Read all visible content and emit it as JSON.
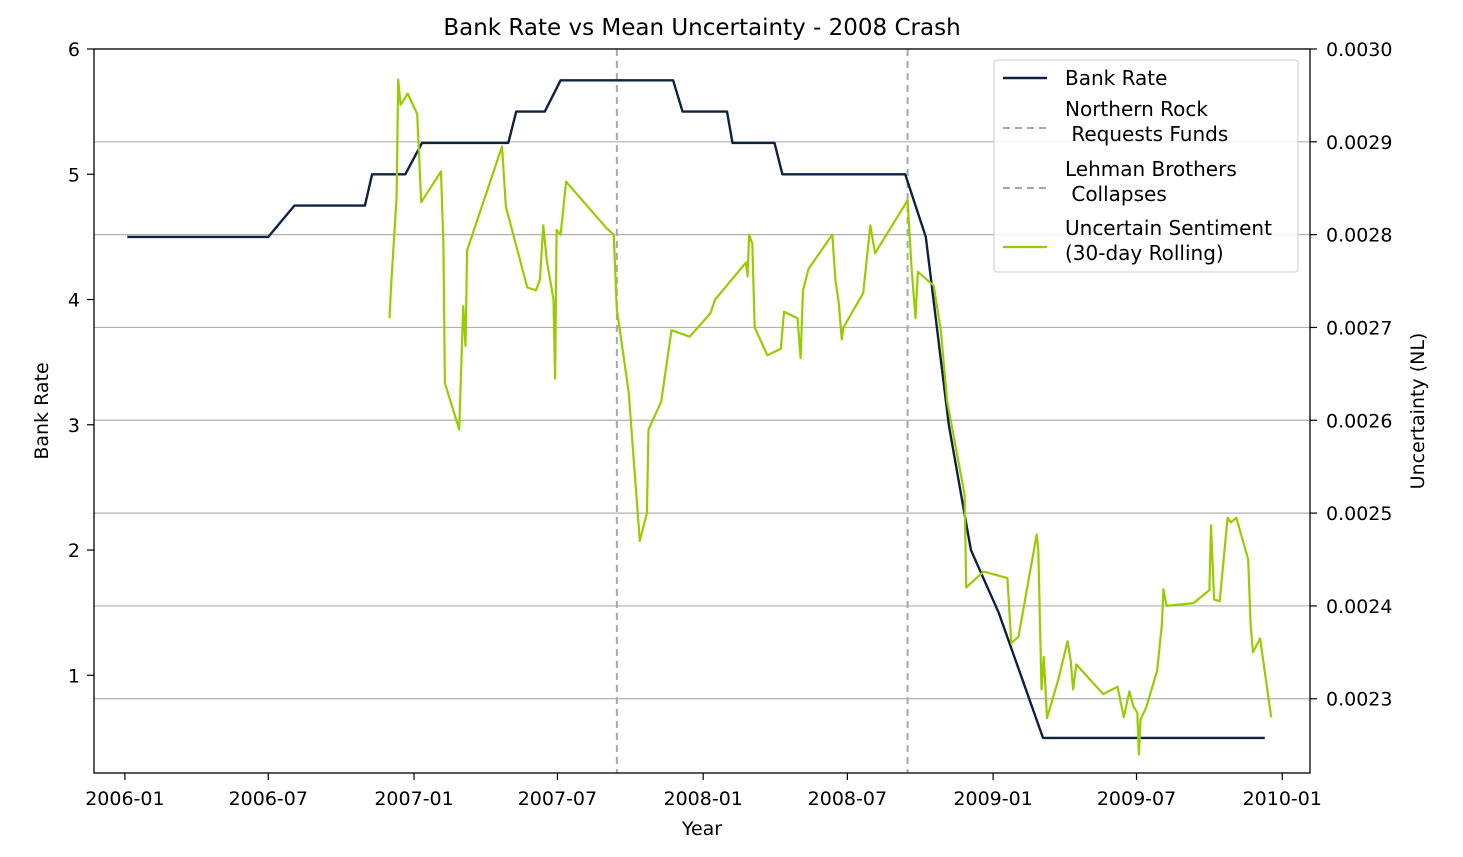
{
  "chart_data": {
    "type": "line",
    "title": "Bank Rate vs Mean Uncertainty - 2008 Crash",
    "xlabel": "Year",
    "ylabel_left": "Bank Rate",
    "ylabel_right": "Uncertainty (NL)",
    "x_ticks": [
      "2006-01",
      "2006-07",
      "2007-01",
      "2007-07",
      "2008-01",
      "2008-07",
      "2009-01",
      "2009-07",
      "2010-01"
    ],
    "y_left_ticks": [
      "1",
      "2",
      "3",
      "4",
      "5",
      "6"
    ],
    "y_right_ticks": [
      "0.0023",
      "0.0024",
      "0.0025",
      "0.0026",
      "0.0027",
      "0.0028",
      "0.0029",
      "0.0030"
    ],
    "xlim": [
      "2005-11-23",
      "2010-02-05"
    ],
    "ylim_left": [
      0.22,
      6.0
    ],
    "ylim_right": [
      0.00222,
      0.003
    ],
    "grid": "right-axis horizontal",
    "legend_position": "top-right",
    "events": [
      {
        "date": "2007-09-14",
        "label": "Northern Rock\n Requests Funds"
      },
      {
        "date": "2008-09-15",
        "label": "Lehman Brothers\n Collapses"
      }
    ],
    "colors": {
      "bank_rate": "#0e2240",
      "uncertainty": "#99cc00",
      "events": "#a8a8a8",
      "grid": "#b0b0b0"
    },
    "series": [
      {
        "name": "Bank Rate",
        "axis": "left",
        "points": [
          [
            "2006-01-04",
            4.5
          ],
          [
            "2006-07-01",
            4.5
          ],
          [
            "2006-08-03",
            4.75
          ],
          [
            "2006-10-31",
            4.75
          ],
          [
            "2006-11-09",
            5.0
          ],
          [
            "2006-12-21",
            5.0
          ],
          [
            "2007-01-11",
            5.25
          ],
          [
            "2007-04-30",
            5.25
          ],
          [
            "2007-05-10",
            5.5
          ],
          [
            "2007-06-15",
            5.5
          ],
          [
            "2007-07-05",
            5.75
          ],
          [
            "2007-11-24",
            5.75
          ],
          [
            "2007-12-06",
            5.5
          ],
          [
            "2008-01-31",
            5.5
          ],
          [
            "2008-02-07",
            5.25
          ],
          [
            "2008-03-31",
            5.25
          ],
          [
            "2008-04-10",
            5.0
          ],
          [
            "2008-09-12",
            5.0
          ],
          [
            "2008-10-08",
            4.5
          ],
          [
            "2008-11-06",
            3.0
          ],
          [
            "2008-12-04",
            2.0
          ],
          [
            "2009-01-08",
            1.5
          ],
          [
            "2009-02-05",
            1.0
          ],
          [
            "2009-03-05",
            0.5
          ],
          [
            "2009-12-10",
            0.5
          ]
        ]
      },
      {
        "name": "Uncertain Sentiment\n(30-day Rolling)",
        "axis": "right",
        "points": [
          [
            "2006-12-01",
            0.00271
          ],
          [
            "2006-12-03",
            0.002745
          ],
          [
            "2006-12-10",
            0.00284
          ],
          [
            "2006-12-12",
            0.002967
          ],
          [
            "2006-12-15",
            0.00294
          ],
          [
            "2006-12-24",
            0.002952
          ],
          [
            "2007-01-05",
            0.00293
          ],
          [
            "2007-01-10",
            0.002835
          ],
          [
            "2007-02-04",
            0.002868
          ],
          [
            "2007-02-07",
            0.00279
          ],
          [
            "2007-02-09",
            0.00264
          ],
          [
            "2007-02-27",
            0.00259
          ],
          [
            "2007-03-04",
            0.002723
          ],
          [
            "2007-03-07",
            0.00268
          ],
          [
            "2007-03-09",
            0.002783
          ],
          [
            "2007-04-22",
            0.002895
          ],
          [
            "2007-04-27",
            0.00283
          ],
          [
            "2007-05-24",
            0.002743
          ],
          [
            "2007-06-04",
            0.00274
          ],
          [
            "2007-06-09",
            0.002752
          ],
          [
            "2007-06-13",
            0.00281
          ],
          [
            "2007-06-18",
            0.00277
          ],
          [
            "2007-06-26",
            0.00273
          ],
          [
            "2007-06-28",
            0.002645
          ],
          [
            "2007-06-30",
            0.002805
          ],
          [
            "2007-07-05",
            0.0028
          ],
          [
            "2007-07-12",
            0.002857
          ],
          [
            "2007-09-01",
            0.002807
          ],
          [
            "2007-09-10",
            0.0028
          ],
          [
            "2007-09-14",
            0.00272
          ],
          [
            "2007-09-29",
            0.00263
          ],
          [
            "2007-10-13",
            0.00247
          ],
          [
            "2007-10-22",
            0.0025
          ],
          [
            "2007-10-24",
            0.00259
          ],
          [
            "2007-11-09",
            0.00262
          ],
          [
            "2007-11-22",
            0.002697
          ],
          [
            "2007-12-15",
            0.00269
          ],
          [
            "2008-01-10",
            0.002715
          ],
          [
            "2008-01-16",
            0.00273
          ],
          [
            "2008-02-24",
            0.00277
          ],
          [
            "2008-02-26",
            0.002755
          ],
          [
            "2008-02-28",
            0.0028
          ],
          [
            "2008-03-03",
            0.00279
          ],
          [
            "2008-03-06",
            0.0027
          ],
          [
            "2008-03-22",
            0.00267
          ],
          [
            "2008-04-08",
            0.002677
          ],
          [
            "2008-04-12",
            0.002717
          ],
          [
            "2008-04-29",
            0.00271
          ],
          [
            "2008-05-03",
            0.002667
          ],
          [
            "2008-05-06",
            0.00274
          ],
          [
            "2008-05-13",
            0.002763
          ],
          [
            "2008-06-12",
            0.0028
          ],
          [
            "2008-06-16",
            0.00275
          ],
          [
            "2008-06-20",
            0.002727
          ],
          [
            "2008-06-24",
            0.002687
          ],
          [
            "2008-06-26",
            0.0027
          ],
          [
            "2008-07-21",
            0.002737
          ],
          [
            "2008-07-30",
            0.00281
          ],
          [
            "2008-08-05",
            0.00278
          ],
          [
            "2008-09-15",
            0.002837
          ],
          [
            "2008-09-20",
            0.002765
          ],
          [
            "2008-09-25",
            0.00271
          ],
          [
            "2008-09-28",
            0.00276
          ],
          [
            "2008-10-18",
            0.002745
          ],
          [
            "2008-10-27",
            0.002697
          ],
          [
            "2008-11-04",
            0.00262
          ],
          [
            "2008-11-26",
            0.00252
          ],
          [
            "2008-11-28",
            0.00242
          ],
          [
            "2008-12-20",
            0.002437
          ],
          [
            "2009-01-19",
            0.00243
          ],
          [
            "2009-01-24",
            0.00236
          ],
          [
            "2009-02-02",
            0.002367
          ],
          [
            "2009-02-25",
            0.002477
          ],
          [
            "2009-02-27",
            0.00246
          ],
          [
            "2009-03-03",
            0.00231
          ],
          [
            "2009-03-06",
            0.002345
          ],
          [
            "2009-03-10",
            0.002279
          ],
          [
            "2009-03-24",
            0.00232
          ],
          [
            "2009-04-05",
            0.002362
          ],
          [
            "2009-04-09",
            0.00234
          ],
          [
            "2009-04-12",
            0.00231
          ],
          [
            "2009-04-16",
            0.002337
          ],
          [
            "2009-05-20",
            0.002305
          ],
          [
            "2009-06-07",
            0.002313
          ],
          [
            "2009-06-15",
            0.00228
          ],
          [
            "2009-06-22",
            0.002308
          ],
          [
            "2009-06-27",
            0.002292
          ],
          [
            "2009-07-02",
            0.002285
          ],
          [
            "2009-07-04",
            0.00224
          ],
          [
            "2009-07-06",
            0.002278
          ],
          [
            "2009-07-13",
            0.00229
          ],
          [
            "2009-07-27",
            0.00233
          ],
          [
            "2009-08-02",
            0.00238
          ],
          [
            "2009-08-04",
            0.002418
          ],
          [
            "2009-08-08",
            0.0024
          ],
          [
            "2009-09-11",
            0.002403
          ],
          [
            "2009-10-01",
            0.002417
          ],
          [
            "2009-10-03",
            0.002487
          ],
          [
            "2009-10-07",
            0.002407
          ],
          [
            "2009-10-14",
            0.002405
          ],
          [
            "2009-10-24",
            0.002495
          ],
          [
            "2009-10-28",
            0.00249
          ],
          [
            "2009-11-04",
            0.002495
          ],
          [
            "2009-11-19",
            0.00245
          ],
          [
            "2009-11-22",
            0.00238
          ],
          [
            "2009-11-25",
            0.00235
          ],
          [
            "2009-12-04",
            0.002365
          ],
          [
            "2009-12-18",
            0.00228
          ]
        ]
      }
    ]
  }
}
